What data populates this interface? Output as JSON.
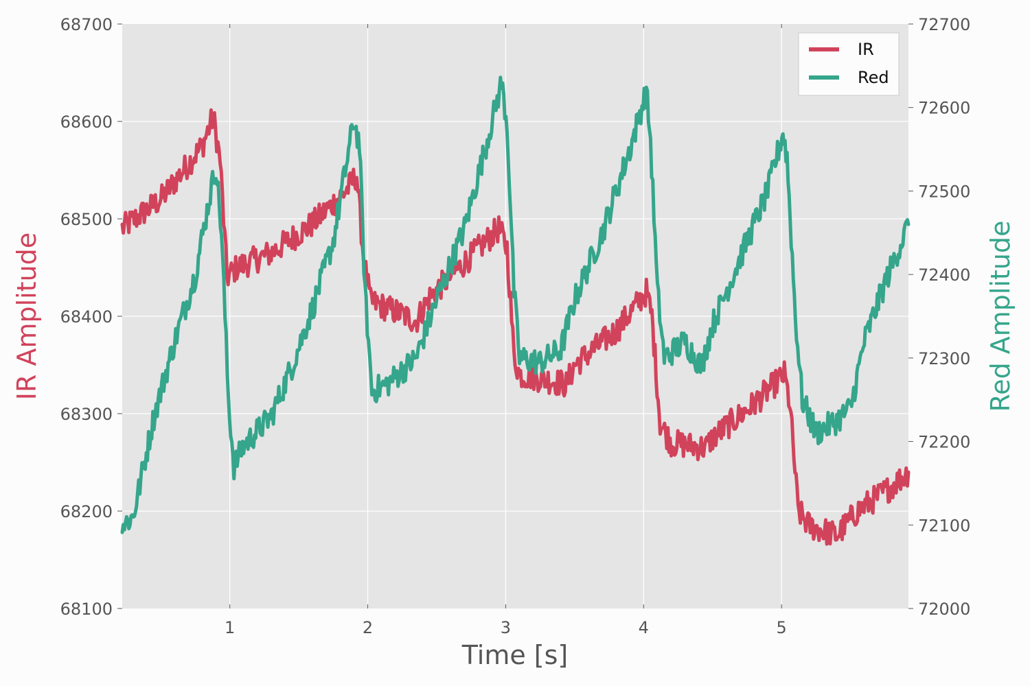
{
  "chart_data": {
    "type": "line",
    "title": "",
    "xlabel": "Time [s]",
    "ylabel_left": "IR Amplitude",
    "ylabel_right": "Red Amplitude",
    "xlim": [
      0.22,
      5.92
    ],
    "ylim_left": [
      68100,
      68700
    ],
    "ylim_right": [
      72000,
      72700
    ],
    "x_ticks": [
      1,
      2,
      3,
      4,
      5
    ],
    "x_tick_labels": [
      "1",
      "2",
      "3",
      "4",
      "5"
    ],
    "y_ticks_left": [
      68100,
      68200,
      68300,
      68400,
      68500,
      68600,
      68700
    ],
    "y_tick_labels_left": [
      "68100",
      "68200",
      "68300",
      "68400",
      "68500",
      "68600",
      "68700"
    ],
    "y_ticks_right": [
      72000,
      72100,
      72200,
      72300,
      72400,
      72500,
      72600,
      72700
    ],
    "y_tick_labels_right": [
      "72000",
      "72100",
      "72200",
      "72300",
      "72400",
      "72500",
      "72600",
      "72700"
    ],
    "grid": true,
    "legend_position": "top-right",
    "series": [
      {
        "name": "IR",
        "axis": "left",
        "color": "#d1435b",
        "points": [
          [
            0.22,
            68490
          ],
          [
            0.5,
            68520
          ],
          [
            0.8,
            68575
          ],
          [
            0.88,
            68605
          ],
          [
            0.93,
            68560
          ],
          [
            0.98,
            68440
          ],
          [
            1.05,
            68450
          ],
          [
            1.3,
            68465
          ],
          [
            1.6,
            68495
          ],
          [
            1.85,
            68530
          ],
          [
            1.92,
            68545
          ],
          [
            1.97,
            68460
          ],
          [
            2.02,
            68415
          ],
          [
            2.2,
            68405
          ],
          [
            2.35,
            68395
          ],
          [
            2.45,
            68420
          ],
          [
            2.7,
            68455
          ],
          [
            2.95,
            68490
          ],
          [
            3.01,
            68470
          ],
          [
            3.06,
            68360
          ],
          [
            3.1,
            68340
          ],
          [
            3.3,
            68335
          ],
          [
            3.44,
            68330
          ],
          [
            3.5,
            68350
          ],
          [
            3.8,
            68385
          ],
          [
            4.02,
            68425
          ],
          [
            4.06,
            68400
          ],
          [
            4.12,
            68290
          ],
          [
            4.2,
            68270
          ],
          [
            4.45,
            68265
          ],
          [
            4.5,
            68275
          ],
          [
            4.8,
            68310
          ],
          [
            5.02,
            68340
          ],
          [
            5.06,
            68310
          ],
          [
            5.12,
            68200
          ],
          [
            5.2,
            68185
          ],
          [
            5.4,
            68175
          ],
          [
            5.55,
            68200
          ],
          [
            5.75,
            68220
          ],
          [
            5.92,
            68240
          ]
        ]
      },
      {
        "name": "Red",
        "axis": "right",
        "color": "#35a58b",
        "points": [
          [
            0.22,
            72100
          ],
          [
            0.3,
            72110
          ],
          [
            0.45,
            72230
          ],
          [
            0.6,
            72320
          ],
          [
            0.75,
            72400
          ],
          [
            0.85,
            72490
          ],
          [
            0.9,
            72530
          ],
          [
            0.94,
            72450
          ],
          [
            0.99,
            72250
          ],
          [
            1.03,
            72170
          ],
          [
            1.1,
            72195
          ],
          [
            1.3,
            72230
          ],
          [
            1.45,
            72290
          ],
          [
            1.6,
            72360
          ],
          [
            1.75,
            72440
          ],
          [
            1.9,
            72585
          ],
          [
            1.94,
            72555
          ],
          [
            1.98,
            72380
          ],
          [
            2.03,
            72260
          ],
          [
            2.15,
            72270
          ],
          [
            2.25,
            72285
          ],
          [
            2.35,
            72300
          ],
          [
            2.5,
            72370
          ],
          [
            2.7,
            72455
          ],
          [
            2.85,
            72550
          ],
          [
            2.97,
            72630
          ],
          [
            3.01,
            72580
          ],
          [
            3.06,
            72380
          ],
          [
            3.1,
            72300
          ],
          [
            3.25,
            72295
          ],
          [
            3.4,
            72310
          ],
          [
            3.5,
            72370
          ],
          [
            3.7,
            72450
          ],
          [
            3.9,
            72550
          ],
          [
            4.02,
            72620
          ],
          [
            4.05,
            72560
          ],
          [
            4.1,
            72380
          ],
          [
            4.15,
            72300
          ],
          [
            4.3,
            72320
          ],
          [
            4.42,
            72290
          ],
          [
            4.5,
            72340
          ],
          [
            4.7,
            72420
          ],
          [
            4.9,
            72500
          ],
          [
            5.01,
            72570
          ],
          [
            5.04,
            72540
          ],
          [
            5.1,
            72350
          ],
          [
            5.15,
            72250
          ],
          [
            5.25,
            72210
          ],
          [
            5.4,
            72225
          ],
          [
            5.5,
            72240
          ],
          [
            5.6,
            72320
          ],
          [
            5.75,
            72390
          ],
          [
            5.92,
            72460
          ]
        ]
      }
    ]
  },
  "legend": {
    "items": [
      {
        "label": "IR",
        "color": "#d1435b"
      },
      {
        "label": "Red",
        "color": "#35a58b"
      }
    ]
  },
  "colors": {
    "plot_background": "#e5e5e5",
    "grid": "#ffffff",
    "ir": "#d1435b",
    "red": "#35a58b",
    "tick_text": "#555555"
  }
}
